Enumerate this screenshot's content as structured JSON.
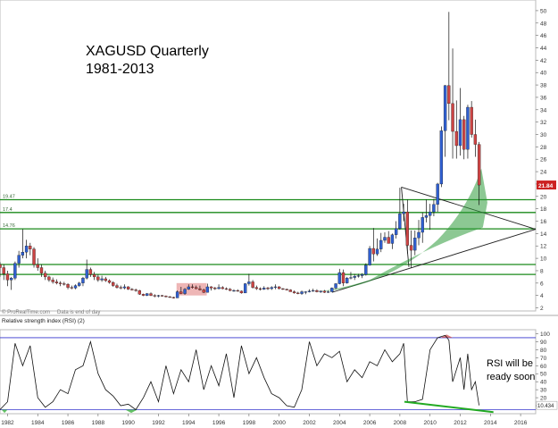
{
  "title_line1": "XAGUSD Quarterly",
  "title_line2": "1981-2013",
  "watermark": "© ProRealTime.com",
  "data_note": "Data is end of day",
  "rsi_title": "Relative strength index (RSI) (2)",
  "annotation_line1": "RSI will be",
  "annotation_line2": "ready soon",
  "colors": {
    "up_candle": "#2f5fd0",
    "down_candle": "#cc4444",
    "wick": "#111111",
    "support_line": "#1a8a1a",
    "rsi_line": "#111111",
    "rsi_band": "#3333cc",
    "divergence": "#22aa22",
    "last_price_box": "#cc2222",
    "rsi_value_box": "#ffffff"
  },
  "chart_data": [
    {
      "type": "candlestick",
      "name": "price",
      "y_axis_ticks": [
        2,
        4,
        6,
        8,
        10,
        12,
        14,
        16,
        18,
        20,
        22,
        24,
        26,
        28,
        30,
        32,
        34,
        36,
        38,
        40,
        42,
        44,
        46,
        48,
        50
      ],
      "ylim": [
        1.5,
        51
      ],
      "xlim": [
        1981.5,
        2017
      ],
      "horizontal_levels": [
        {
          "value": 19.47,
          "label": "19.47"
        },
        {
          "value": 17.4,
          "label": "17.4"
        },
        {
          "value": 14.76,
          "label": "14.76"
        },
        {
          "value": 9,
          "label": ""
        },
        {
          "value": 7.4,
          "label": ""
        }
      ],
      "last_price": "21.84",
      "candles": [
        {
          "t": 1981.5,
          "o": 9,
          "h": 9.4,
          "l": 7,
          "c": 8.5
        },
        {
          "t": 1981.75,
          "o": 8.5,
          "h": 9,
          "l": 6.5,
          "c": 7.5
        },
        {
          "t": 1982,
          "o": 7.5,
          "h": 8,
          "l": 5.5,
          "c": 6.5
        },
        {
          "t": 1982.25,
          "o": 6.5,
          "h": 7,
          "l": 4.9,
          "c": 6.8
        },
        {
          "t": 1982.5,
          "o": 6.8,
          "h": 9.5,
          "l": 6.5,
          "c": 9.2
        },
        {
          "t": 1982.75,
          "o": 9.2,
          "h": 11.2,
          "l": 8.5,
          "c": 10.5
        },
        {
          "t": 1983,
          "o": 10.5,
          "h": 14.7,
          "l": 10,
          "c": 11
        },
        {
          "t": 1983.25,
          "o": 11,
          "h": 13,
          "l": 10,
          "c": 12
        },
        {
          "t": 1983.5,
          "o": 12,
          "h": 12.5,
          "l": 10.5,
          "c": 11.5
        },
        {
          "t": 1983.75,
          "o": 11.5,
          "h": 11.8,
          "l": 8.5,
          "c": 9
        },
        {
          "t": 1984,
          "o": 9,
          "h": 10,
          "l": 8,
          "c": 8.5
        },
        {
          "t": 1984.25,
          "o": 8.5,
          "h": 9,
          "l": 7,
          "c": 7.6
        },
        {
          "t": 1984.5,
          "o": 7.6,
          "h": 8,
          "l": 6.5,
          "c": 7
        },
        {
          "t": 1984.75,
          "o": 7,
          "h": 7.2,
          "l": 6.2,
          "c": 6.5
        },
        {
          "t": 1985,
          "o": 6.5,
          "h": 6.9,
          "l": 5.9,
          "c": 6.2
        },
        {
          "t": 1985.25,
          "o": 6.2,
          "h": 6.6,
          "l": 5.8,
          "c": 6
        },
        {
          "t": 1985.5,
          "o": 6,
          "h": 6.3,
          "l": 5.5,
          "c": 5.9
        },
        {
          "t": 1985.75,
          "o": 5.9,
          "h": 6.2,
          "l": 5.6,
          "c": 5.8
        },
        {
          "t": 1986,
          "o": 5.8,
          "h": 6,
          "l": 5,
          "c": 5.3
        },
        {
          "t": 1986.25,
          "o": 5.3,
          "h": 5.6,
          "l": 5,
          "c": 5.2
        },
        {
          "t": 1986.5,
          "o": 5.2,
          "h": 5.8,
          "l": 5,
          "c": 5.6
        },
        {
          "t": 1986.75,
          "o": 5.6,
          "h": 6.2,
          "l": 5.4,
          "c": 6
        },
        {
          "t": 1987,
          "o": 6,
          "h": 7,
          "l": 5.5,
          "c": 6.8
        },
        {
          "t": 1987.25,
          "o": 6.8,
          "h": 9.8,
          "l": 6.6,
          "c": 8.2
        },
        {
          "t": 1987.5,
          "o": 8.2,
          "h": 8.5,
          "l": 7,
          "c": 7.4
        },
        {
          "t": 1987.75,
          "o": 7.4,
          "h": 7.8,
          "l": 6.5,
          "c": 7
        },
        {
          "t": 1988,
          "o": 7,
          "h": 7.4,
          "l": 6.2,
          "c": 6.5
        },
        {
          "t": 1988.25,
          "o": 6.5,
          "h": 7.2,
          "l": 6.2,
          "c": 6.7
        },
        {
          "t": 1988.5,
          "o": 6.7,
          "h": 7,
          "l": 6.2,
          "c": 6.4
        },
        {
          "t": 1988.75,
          "o": 6.4,
          "h": 6.6,
          "l": 5.9,
          "c": 6.1
        },
        {
          "t": 1989,
          "o": 6.1,
          "h": 6.3,
          "l": 5.4,
          "c": 5.6
        },
        {
          "t": 1989.25,
          "o": 5.6,
          "h": 5.9,
          "l": 5.1,
          "c": 5.3
        },
        {
          "t": 1989.5,
          "o": 5.3,
          "h": 5.6,
          "l": 5,
          "c": 5.2
        },
        {
          "t": 1989.75,
          "o": 5.2,
          "h": 5.8,
          "l": 5,
          "c": 5.4
        },
        {
          "t": 1990,
          "o": 5.4,
          "h": 5.5,
          "l": 4.9,
          "c": 5
        },
        {
          "t": 1990.25,
          "o": 5,
          "h": 5.2,
          "l": 4.8,
          "c": 4.9
        },
        {
          "t": 1990.5,
          "o": 4.9,
          "h": 5.1,
          "l": 4.6,
          "c": 4.8
        },
        {
          "t": 1990.75,
          "o": 4.8,
          "h": 4.9,
          "l": 4.1,
          "c": 4.2
        },
        {
          "t": 1991,
          "o": 4.2,
          "h": 4.3,
          "l": 3.9,
          "c": 4
        },
        {
          "t": 1991.25,
          "o": 4,
          "h": 4.4,
          "l": 3.9,
          "c": 4.3
        },
        {
          "t": 1991.5,
          "o": 4.3,
          "h": 4.5,
          "l": 3.9,
          "c": 4
        },
        {
          "t": 1991.75,
          "o": 4,
          "h": 4.2,
          "l": 3.7,
          "c": 3.9
        },
        {
          "t": 1992,
          "o": 3.9,
          "h": 4.1,
          "l": 3.7,
          "c": 4
        },
        {
          "t": 1992.25,
          "o": 4,
          "h": 4.1,
          "l": 3.8,
          "c": 3.9
        },
        {
          "t": 1992.5,
          "o": 3.9,
          "h": 4,
          "l": 3.7,
          "c": 3.8
        },
        {
          "t": 1992.75,
          "o": 3.8,
          "h": 3.9,
          "l": 3.6,
          "c": 3.7
        },
        {
          "t": 1993,
          "o": 3.7,
          "h": 3.8,
          "l": 3.5,
          "c": 3.6
        },
        {
          "t": 1993.25,
          "o": 3.6,
          "h": 4.8,
          "l": 3.6,
          "c": 4.6
        },
        {
          "t": 1993.5,
          "o": 4.6,
          "h": 5.4,
          "l": 4.2,
          "c": 4.3
        },
        {
          "t": 1993.75,
          "o": 4.3,
          "h": 5.2,
          "l": 4.1,
          "c": 5
        },
        {
          "t": 1994,
          "o": 5,
          "h": 5.8,
          "l": 4.9,
          "c": 5.4
        },
        {
          "t": 1994.25,
          "o": 5.4,
          "h": 5.8,
          "l": 5.1,
          "c": 5.3
        },
        {
          "t": 1994.5,
          "o": 5.3,
          "h": 5.6,
          "l": 5,
          "c": 5.1
        },
        {
          "t": 1994.75,
          "o": 5.1,
          "h": 5.6,
          "l": 4.8,
          "c": 4.9
        },
        {
          "t": 1995,
          "o": 4.9,
          "h": 5.1,
          "l": 4.4,
          "c": 4.5
        },
        {
          "t": 1995.25,
          "o": 4.5,
          "h": 5.9,
          "l": 4.5,
          "c": 5.4
        },
        {
          "t": 1995.5,
          "o": 5.4,
          "h": 5.5,
          "l": 4.8,
          "c": 5.2
        },
        {
          "t": 1995.75,
          "o": 5.2,
          "h": 5.4,
          "l": 4.9,
          "c": 5.1
        },
        {
          "t": 1996,
          "o": 5.1,
          "h": 5.8,
          "l": 5,
          "c": 5.3
        },
        {
          "t": 1996.25,
          "o": 5.3,
          "h": 5.5,
          "l": 5,
          "c": 5.1
        },
        {
          "t": 1996.5,
          "o": 5.1,
          "h": 5.3,
          "l": 4.9,
          "c": 5
        },
        {
          "t": 1996.75,
          "o": 5,
          "h": 5.2,
          "l": 4.7,
          "c": 4.8
        },
        {
          "t": 1997,
          "o": 4.8,
          "h": 5,
          "l": 4.6,
          "c": 4.8
        },
        {
          "t": 1997.25,
          "o": 4.8,
          "h": 5,
          "l": 4.6,
          "c": 4.7
        },
        {
          "t": 1997.5,
          "o": 4.7,
          "h": 4.8,
          "l": 4.3,
          "c": 4.4
        },
        {
          "t": 1997.75,
          "o": 4.4,
          "h": 6,
          "l": 4.4,
          "c": 5.9
        },
        {
          "t": 1998,
          "o": 5.9,
          "h": 7.5,
          "l": 5.6,
          "c": 6.2
        },
        {
          "t": 1998.25,
          "o": 6.2,
          "h": 6.5,
          "l": 5.1,
          "c": 5.3
        },
        {
          "t": 1998.5,
          "o": 5.3,
          "h": 5.6,
          "l": 4.9,
          "c": 5.1
        },
        {
          "t": 1998.75,
          "o": 5.1,
          "h": 5.3,
          "l": 4.8,
          "c": 5
        },
        {
          "t": 1999,
          "o": 5,
          "h": 5.5,
          "l": 4.9,
          "c": 5.2
        },
        {
          "t": 1999.25,
          "o": 5.2,
          "h": 5.4,
          "l": 4.9,
          "c": 5.1
        },
        {
          "t": 1999.5,
          "o": 5.1,
          "h": 5.5,
          "l": 4.9,
          "c": 5.3
        },
        {
          "t": 1999.75,
          "o": 5.3,
          "h": 5.8,
          "l": 5,
          "c": 5.4
        },
        {
          "t": 2000,
          "o": 5.4,
          "h": 5.5,
          "l": 5,
          "c": 5.1
        },
        {
          "t": 2000.25,
          "o": 5.1,
          "h": 5.2,
          "l": 4.9,
          "c": 5
        },
        {
          "t": 2000.5,
          "o": 5,
          "h": 5.1,
          "l": 4.8,
          "c": 4.9
        },
        {
          "t": 2000.75,
          "o": 4.9,
          "h": 5,
          "l": 4.6,
          "c": 4.6
        },
        {
          "t": 2001,
          "o": 4.6,
          "h": 4.8,
          "l": 4.3,
          "c": 4.4
        },
        {
          "t": 2001.25,
          "o": 4.4,
          "h": 4.6,
          "l": 4.2,
          "c": 4.3
        },
        {
          "t": 2001.5,
          "o": 4.3,
          "h": 4.8,
          "l": 4.1,
          "c": 4.6
        },
        {
          "t": 2001.75,
          "o": 4.6,
          "h": 4.7,
          "l": 4.2,
          "c": 4.6
        },
        {
          "t": 2002,
          "o": 4.6,
          "h": 5,
          "l": 4.5,
          "c": 4.7
        },
        {
          "t": 2002.25,
          "o": 4.7,
          "h": 5.1,
          "l": 4.6,
          "c": 4.8
        },
        {
          "t": 2002.5,
          "o": 4.8,
          "h": 5,
          "l": 4.5,
          "c": 4.6
        },
        {
          "t": 2002.75,
          "o": 4.6,
          "h": 4.8,
          "l": 4.4,
          "c": 4.7
        },
        {
          "t": 2003,
          "o": 4.7,
          "h": 4.9,
          "l": 4.4,
          "c": 4.5
        },
        {
          "t": 2003.25,
          "o": 4.5,
          "h": 4.8,
          "l": 4.4,
          "c": 4.6
        },
        {
          "t": 2003.5,
          "o": 4.6,
          "h": 5.3,
          "l": 4.6,
          "c": 5.2
        },
        {
          "t": 2003.75,
          "o": 5.2,
          "h": 6,
          "l": 5,
          "c": 5.9
        },
        {
          "t": 2004,
          "o": 5.9,
          "h": 8.3,
          "l": 5.8,
          "c": 7.7
        },
        {
          "t": 2004.25,
          "o": 7.7,
          "h": 8.2,
          "l": 5.5,
          "c": 6
        },
        {
          "t": 2004.5,
          "o": 6,
          "h": 7,
          "l": 5.9,
          "c": 6.8
        },
        {
          "t": 2004.75,
          "o": 6.8,
          "h": 7.8,
          "l": 6.6,
          "c": 6.9
        },
        {
          "t": 2005,
          "o": 6.9,
          "h": 7.5,
          "l": 6.5,
          "c": 7.1
        },
        {
          "t": 2005.25,
          "o": 7.1,
          "h": 7.5,
          "l": 6.9,
          "c": 7.2
        },
        {
          "t": 2005.5,
          "o": 7.2,
          "h": 7.6,
          "l": 6.8,
          "c": 7.4
        },
        {
          "t": 2005.75,
          "o": 7.4,
          "h": 9.2,
          "l": 7.2,
          "c": 8.9
        },
        {
          "t": 2006,
          "o": 8.9,
          "h": 12,
          "l": 8.8,
          "c": 11.6
        },
        {
          "t": 2006.25,
          "o": 11.6,
          "h": 14.9,
          "l": 9.5,
          "c": 10.7
        },
        {
          "t": 2006.5,
          "o": 10.7,
          "h": 13.2,
          "l": 10.4,
          "c": 11.5
        },
        {
          "t": 2006.75,
          "o": 11.5,
          "h": 14.1,
          "l": 11,
          "c": 12.9
        },
        {
          "t": 2007,
          "o": 12.9,
          "h": 14.2,
          "l": 12.5,
          "c": 13.4
        },
        {
          "t": 2007.25,
          "o": 13.4,
          "h": 14.4,
          "l": 12.4,
          "c": 12.4
        },
        {
          "t": 2007.5,
          "o": 12.4,
          "h": 14,
          "l": 11.5,
          "c": 13.8
        },
        {
          "t": 2007.75,
          "o": 13.8,
          "h": 16,
          "l": 13.2,
          "c": 14.8
        },
        {
          "t": 2008,
          "o": 14.8,
          "h": 21.4,
          "l": 14.6,
          "c": 17.2
        },
        {
          "t": 2008.25,
          "o": 17.2,
          "h": 18.8,
          "l": 16,
          "c": 17.5
        },
        {
          "t": 2008.5,
          "o": 17.5,
          "h": 19.5,
          "l": 10.8,
          "c": 12.1
        },
        {
          "t": 2008.75,
          "o": 12.1,
          "h": 14.5,
          "l": 8.5,
          "c": 11.3
        },
        {
          "t": 2009,
          "o": 11.3,
          "h": 14.5,
          "l": 10.5,
          "c": 13.3
        },
        {
          "t": 2009.25,
          "o": 13.3,
          "h": 16.2,
          "l": 12.1,
          "c": 14.2
        },
        {
          "t": 2009.5,
          "o": 14.2,
          "h": 17.4,
          "l": 12.5,
          "c": 16.6
        },
        {
          "t": 2009.75,
          "o": 16.6,
          "h": 19.5,
          "l": 15.8,
          "c": 16.9
        },
        {
          "t": 2010,
          "o": 16.9,
          "h": 18.8,
          "l": 14.6,
          "c": 17.5
        },
        {
          "t": 2010.25,
          "o": 17.5,
          "h": 19.6,
          "l": 16.8,
          "c": 18.7
        },
        {
          "t": 2010.5,
          "o": 18.7,
          "h": 22.2,
          "l": 17.5,
          "c": 22
        },
        {
          "t": 2010.75,
          "o": 22,
          "h": 31.3,
          "l": 21.5,
          "c": 30.6
        },
        {
          "t": 2011,
          "o": 30.6,
          "h": 38,
          "l": 26.4,
          "c": 37.9
        },
        {
          "t": 2011.25,
          "o": 37.9,
          "h": 49.8,
          "l": 32.3,
          "c": 35
        },
        {
          "t": 2011.5,
          "o": 35,
          "h": 43.9,
          "l": 26.1,
          "c": 30.5
        },
        {
          "t": 2011.75,
          "o": 30.5,
          "h": 35.5,
          "l": 26.1,
          "c": 28.2
        },
        {
          "t": 2012,
          "o": 28.2,
          "h": 37.5,
          "l": 26.6,
          "c": 32.4
        },
        {
          "t": 2012.25,
          "o": 32.4,
          "h": 33,
          "l": 26,
          "c": 27.6
        },
        {
          "t": 2012.5,
          "o": 27.6,
          "h": 34.8,
          "l": 26.1,
          "c": 34.4
        },
        {
          "t": 2012.75,
          "o": 34.4,
          "h": 35.4,
          "l": 29.5,
          "c": 30
        },
        {
          "t": 2013,
          "o": 30,
          "h": 32.4,
          "l": 26.4,
          "c": 28.4
        },
        {
          "t": 2013.25,
          "o": 28.4,
          "h": 28.8,
          "l": 18.6,
          "c": 21.84
        }
      ]
    },
    {
      "type": "line",
      "name": "RSI",
      "y_axis_ticks": [
        10,
        20,
        30,
        40,
        50,
        60,
        70,
        80,
        90,
        100
      ],
      "ylim": [
        0,
        105
      ],
      "bands": [
        5,
        95
      ],
      "last_value": "10.434",
      "x": [
        1981.5,
        1982,
        1982.5,
        1983,
        1983.5,
        1984,
        1984.5,
        1985,
        1985.5,
        1986,
        1986.5,
        1987,
        1987.5,
        1988,
        1988.5,
        1989,
        1989.5,
        1990,
        1990.5,
        1991,
        1991.5,
        1992,
        1992.5,
        1993,
        1993.5,
        1994,
        1994.5,
        1995,
        1995.5,
        1996,
        1996.5,
        1997,
        1997.5,
        1998,
        1998.5,
        1999,
        1999.5,
        2000,
        2000.5,
        2001,
        2001.5,
        2002,
        2002.5,
        2003,
        2003.5,
        2004,
        2004.5,
        2005,
        2005.5,
        2006,
        2006.5,
        2007,
        2007.5,
        2008,
        2008.25,
        2008.5,
        2009,
        2009.5,
        2010,
        2010.5,
        2011,
        2011.25,
        2011.5,
        2012,
        2012.25,
        2012.5,
        2012.75,
        2013,
        2013.25
      ],
      "y": [
        5,
        15,
        88,
        60,
        85,
        20,
        8,
        15,
        30,
        25,
        55,
        60,
        90,
        50,
        30,
        22,
        10,
        12,
        5,
        20,
        40,
        15,
        60,
        25,
        55,
        40,
        80,
        30,
        60,
        35,
        75,
        20,
        85,
        50,
        70,
        45,
        25,
        20,
        10,
        8,
        30,
        90,
        60,
        75,
        70,
        78,
        40,
        55,
        45,
        65,
        60,
        80,
        65,
        75,
        88,
        15,
        15,
        18,
        80,
        95,
        98,
        92,
        40,
        70,
        30,
        75,
        30,
        40,
        10.4
      ]
    }
  ],
  "x_axis_labels": [
    "1982",
    "1984",
    "1986",
    "1988",
    "1990",
    "1992",
    "1994",
    "1996",
    "1998",
    "2000",
    "2002",
    "2004",
    "2006",
    "2008",
    "2010",
    "2012",
    "2014",
    "2016"
  ]
}
